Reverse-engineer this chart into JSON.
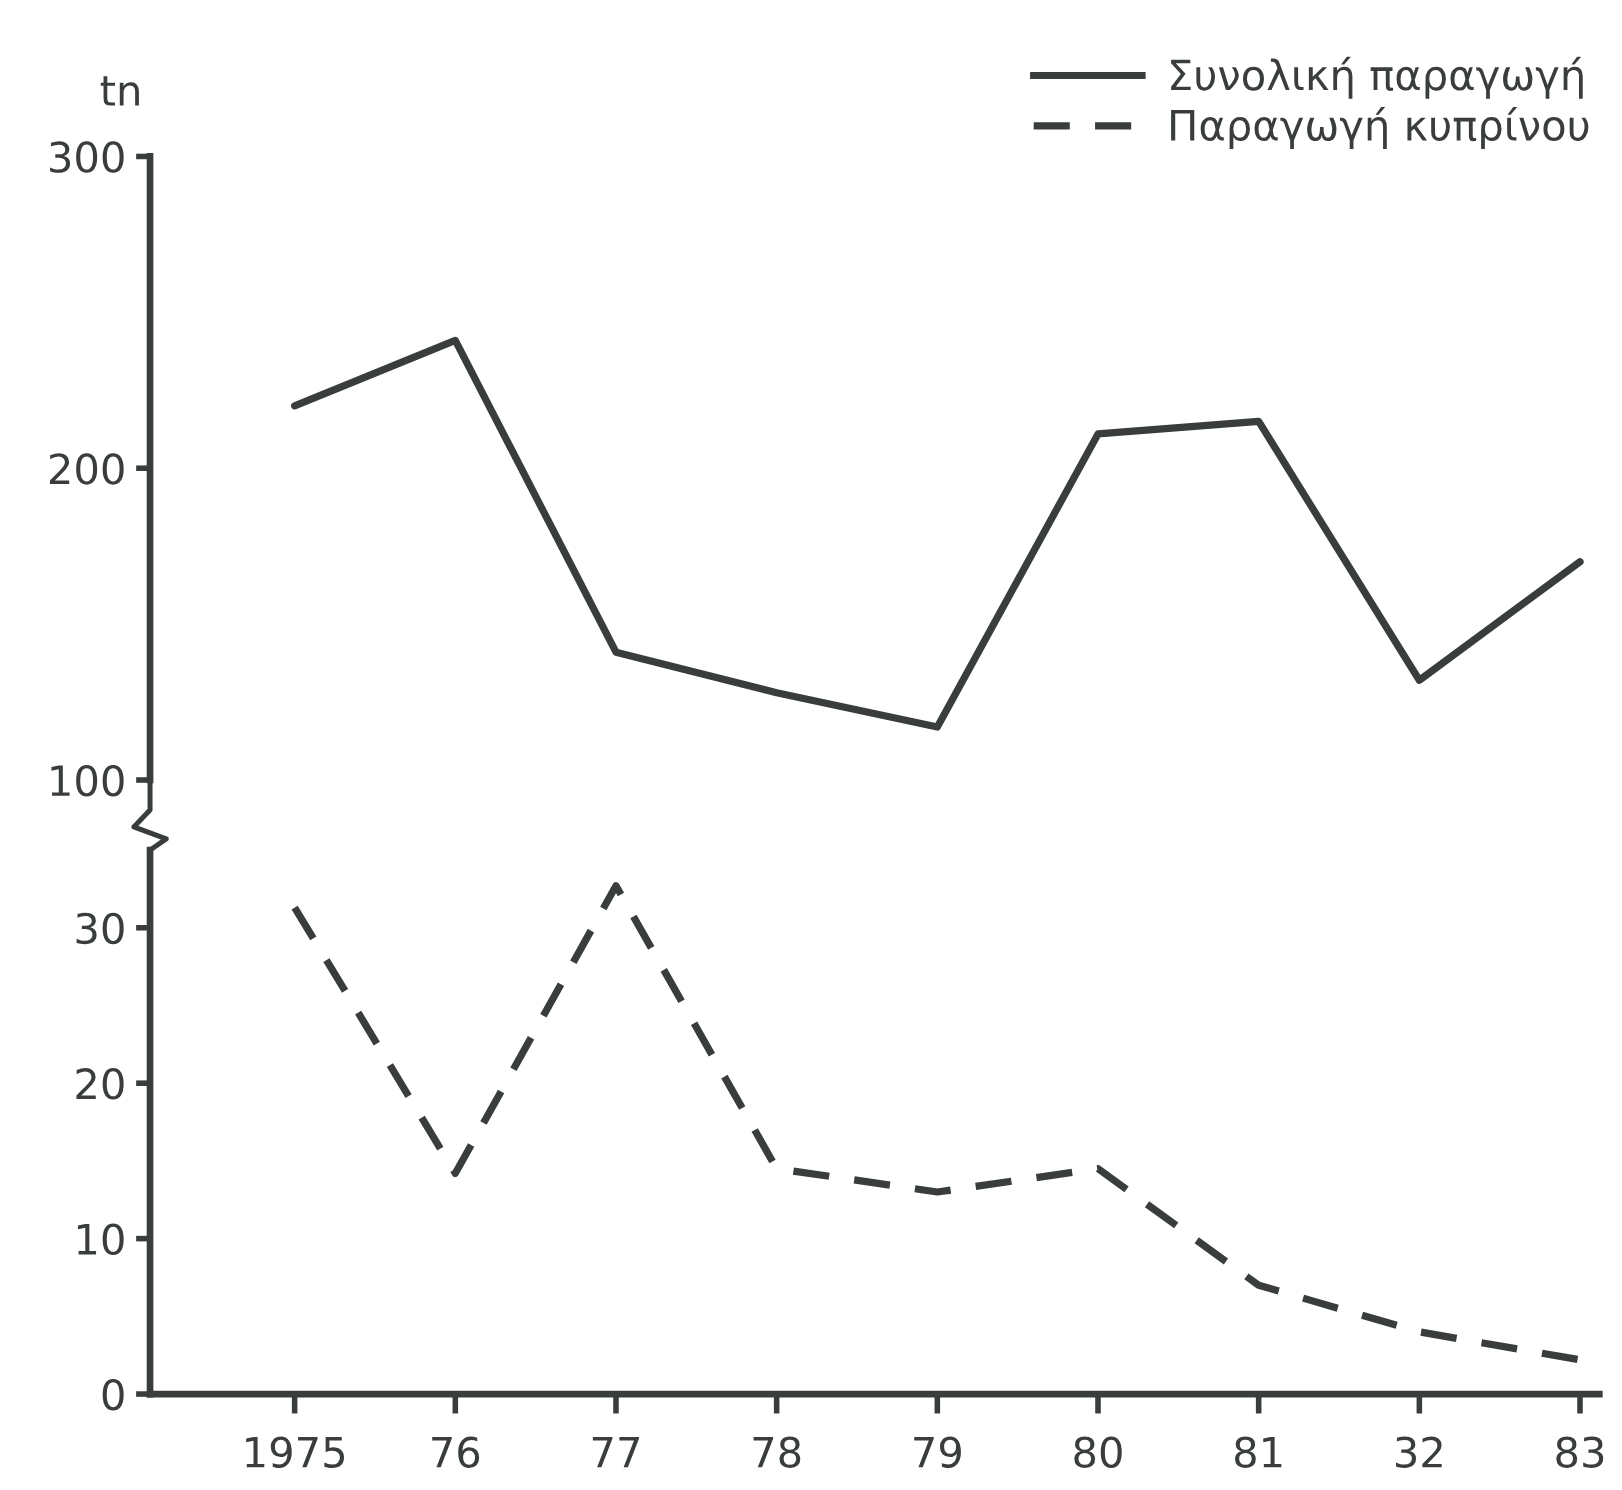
{
  "chart_data": [
    {
      "type": "line",
      "ylabel": "tn",
      "categories": [
        "1975",
        "76",
        "77",
        "78",
        "79",
        "80",
        "81",
        "32",
        "83"
      ],
      "ylim": [
        100,
        300
      ],
      "yticks": [
        100,
        200,
        300
      ],
      "tick_labels": "y",
      "grid": false,
      "legend": "top right",
      "marker": "none",
      "series": [
        {
          "name": "Συνολική παραγωγή",
          "color": "#3a3d3d",
          "line_style": "solid",
          "values": [
            220,
            241,
            141,
            128,
            117,
            211,
            215,
            132,
            170
          ]
        },
        {
          "name": "Παραγωγή κυπρίνου",
          "color": "#3a3d3d",
          "line_style": "dashed",
          "values": [
            null,
            null,
            null,
            null,
            null,
            null,
            null,
            null,
            null
          ]
        }
      ]
    },
    {
      "type": "line",
      "categories": [
        "1975",
        "76",
        "77",
        "78",
        "79",
        "80",
        "81",
        "32",
        "83"
      ],
      "ylim": [
        0,
        35
      ],
      "yticks": [
        0,
        10,
        20,
        30
      ],
      "grid": false,
      "legend": false,
      "marker": "none",
      "series": [
        {
          "color": "#3a3d3d",
          "line_style": "dashed",
          "values": [
            31.3,
            14.2,
            32.7,
            14.5,
            13.0,
            14.5,
            7.0,
            4.0,
            2.2
          ]
        }
      ]
    }
  ]
}
